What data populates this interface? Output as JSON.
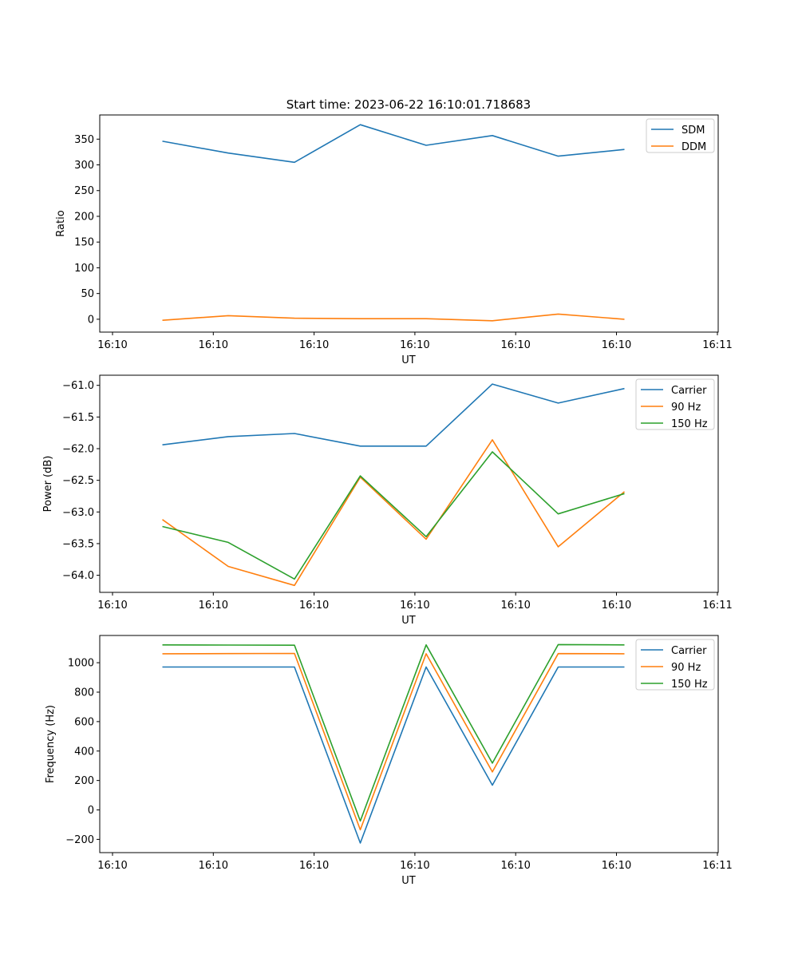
{
  "figure_title": "Start time: 2023-06-22 16:10:01.718683",
  "chart_data": [
    {
      "type": "line",
      "title": "Start time: 2023-06-22 16:10:01.718683",
      "xlabel": "UT",
      "ylabel": "Ratio",
      "x_tick_labels": [
        "16:10",
        "16:10",
        "16:10",
        "16:10",
        "16:10",
        "16:10",
        "16:10"
      ],
      "x_end_tick_label": "16:11",
      "y_ticks": [
        0,
        50,
        100,
        150,
        200,
        250,
        300,
        350
      ],
      "y_tick_labels": [
        "0",
        "50",
        "100",
        "150",
        "200",
        "250",
        "300",
        "350"
      ],
      "ylim": [
        -25,
        397
      ],
      "legend_position": "upper right",
      "grid": false,
      "series": [
        {
          "name": "SDM",
          "color": "#1f77b4",
          "values": [
            346,
            323,
            305,
            378,
            338,
            357,
            317,
            330
          ]
        },
        {
          "name": "DDM",
          "color": "#ff7f0e",
          "values": [
            -2,
            7,
            2,
            1,
            1,
            -3,
            10,
            0
          ]
        }
      ]
    },
    {
      "type": "line",
      "xlabel": "UT",
      "ylabel": "Power (dB)",
      "x_tick_labels": [
        "16:10",
        "16:10",
        "16:10",
        "16:10",
        "16:10",
        "16:10",
        "16:10"
      ],
      "x_end_tick_label": "16:11",
      "y_ticks": [
        -64.0,
        -63.5,
        -63.0,
        -62.5,
        -62.0,
        -61.5,
        -61.0
      ],
      "y_tick_labels": [
        "−64.0",
        "−63.5",
        "−63.0",
        "−62.5",
        "−62.0",
        "−61.5",
        "−61.0"
      ],
      "ylim": [
        -64.27,
        -60.84
      ],
      "legend_position": "upper right",
      "grid": false,
      "series": [
        {
          "name": "Carrier",
          "color": "#1f77b4",
          "values": [
            -61.94,
            -61.81,
            -61.76,
            -61.96,
            -61.96,
            -60.98,
            -61.28,
            -61.05
          ]
        },
        {
          "name": "90 Hz",
          "color": "#ff7f0e",
          "values": [
            -63.12,
            -63.86,
            -64.16,
            -62.45,
            -63.43,
            -61.86,
            -63.55,
            -62.68
          ]
        },
        {
          "name": "150 Hz",
          "color": "#2ca02c",
          "values": [
            -63.23,
            -63.48,
            -64.06,
            -62.43,
            -63.39,
            -62.05,
            -63.03,
            -62.71
          ]
        }
      ]
    },
    {
      "type": "line",
      "xlabel": "UT",
      "ylabel": "Frequency (Hz)",
      "x_tick_labels": [
        "16:10",
        "16:10",
        "16:10",
        "16:10",
        "16:10",
        "16:10",
        "16:10"
      ],
      "x_end_tick_label": "16:11",
      "y_ticks": [
        -200,
        0,
        200,
        400,
        600,
        800,
        1000
      ],
      "y_tick_labels": [
        "−200",
        "0",
        "200",
        "400",
        "600",
        "800",
        "1000"
      ],
      "ylim": [
        -290,
        1185
      ],
      "legend_position": "upper right",
      "grid": false,
      "series": [
        {
          "name": "Carrier",
          "color": "#1f77b4",
          "values": [
            971,
            971,
            971,
            -225,
            971,
            168,
            971,
            971
          ]
        },
        {
          "name": "90 Hz",
          "color": "#ff7f0e",
          "values": [
            1061,
            1062,
            1063,
            -135,
            1061,
            258,
            1062,
            1061
          ]
        },
        {
          "name": "150 Hz",
          "color": "#2ca02c",
          "values": [
            1121,
            1120,
            1119,
            -75,
            1121,
            318,
            1123,
            1121
          ]
        }
      ]
    }
  ]
}
